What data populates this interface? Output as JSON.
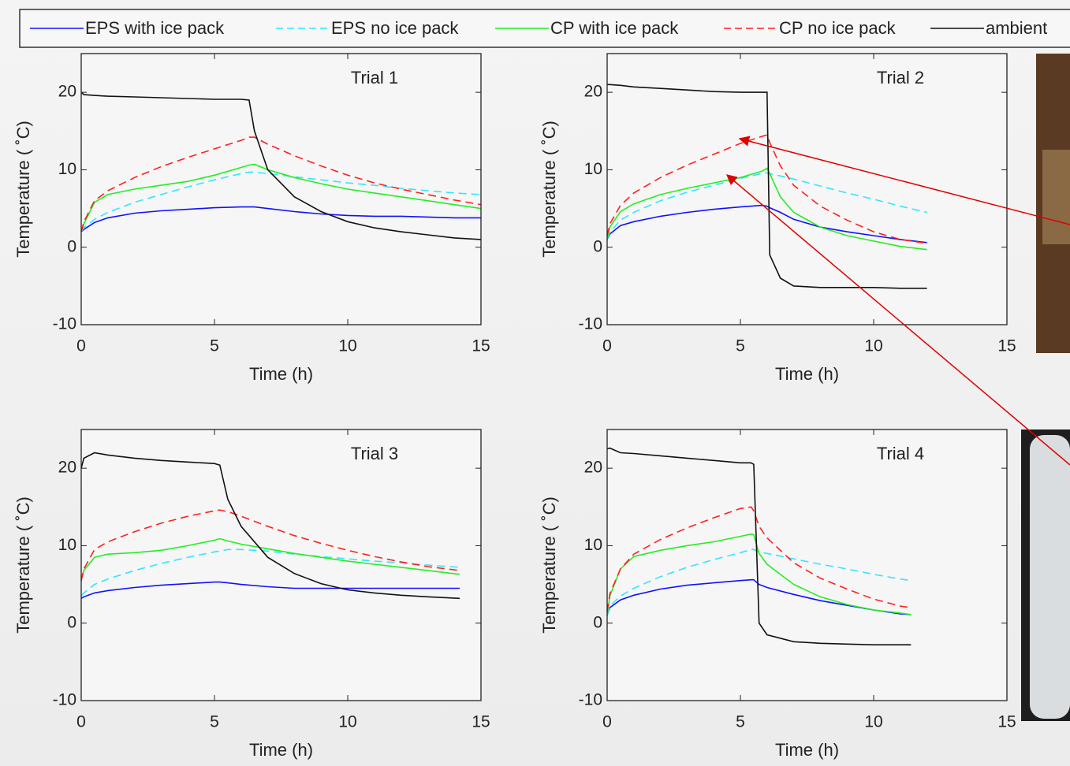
{
  "chart_data": [
    {
      "type": "line",
      "title": "Trial 1",
      "xlabel": "Time (h)",
      "ylabel": "Temperature ( ˚C)",
      "xlim": [
        0,
        15
      ],
      "ylim": [
        -10,
        25
      ],
      "xticks": [
        0,
        5,
        10,
        15
      ],
      "yticks": [
        -10,
        0,
        10,
        20
      ],
      "x": [
        0,
        0.1,
        0.5,
        1,
        2,
        3,
        4,
        5,
        6,
        6.3,
        6.5,
        7,
        8,
        9,
        10,
        11,
        12,
        13,
        14,
        15
      ],
      "series": [
        {
          "name": "EPS with ice pack",
          "color": "#1010ff",
          "dash": false,
          "values": [
            2,
            2.3,
            3.2,
            3.8,
            4.4,
            4.7,
            4.9,
            5.1,
            5.2,
            5.2,
            5.2,
            5,
            4.6,
            4.3,
            4.1,
            4,
            4,
            3.9,
            3.8,
            3.8
          ]
        },
        {
          "name": "EPS no ice pack",
          "color": "#33e6ff",
          "dash": true,
          "values": [
            2,
            2.5,
            3.6,
            4.5,
            5.8,
            6.8,
            7.8,
            8.7,
            9.5,
            9.7,
            9.7,
            9.5,
            9.1,
            8.7,
            8.3,
            8,
            7.6,
            7.3,
            7,
            6.8
          ]
        },
        {
          "name": "CP with ice pack",
          "color": "#22ee22",
          "dash": false,
          "values": [
            2,
            3,
            5.8,
            6.8,
            7.5,
            8,
            8.5,
            9.3,
            10.3,
            10.6,
            10.7,
            10,
            9,
            8.2,
            7.5,
            7,
            6.5,
            6,
            5.5,
            5
          ]
        },
        {
          "name": "CP no ice pack",
          "color": "#ff2020",
          "dash": true,
          "values": [
            2,
            3.3,
            6,
            7.3,
            9,
            10.4,
            11.6,
            12.7,
            13.8,
            14.2,
            14.2,
            13.3,
            11.8,
            10.5,
            9.3,
            8.3,
            7.5,
            6.8,
            6.1,
            5.5
          ]
        },
        {
          "name": "ambient",
          "color": "#111111",
          "dash": false,
          "values": [
            20,
            19.7,
            19.6,
            19.5,
            19.4,
            19.3,
            19.2,
            19.1,
            19.1,
            19,
            15,
            10,
            6.5,
            4.6,
            3.3,
            2.5,
            2,
            1.6,
            1.2,
            1
          ]
        }
      ]
    },
    {
      "type": "line",
      "title": "Trial 2",
      "xlabel": "Time (h)",
      "ylabel": "Temperature ( ˚C)",
      "xlim": [
        0,
        15
      ],
      "ylim": [
        -10,
        25
      ],
      "xticks": [
        0,
        5,
        10,
        15
      ],
      "yticks": [
        -10,
        0,
        10,
        20
      ],
      "x": [
        0,
        0.1,
        0.5,
        1,
        2,
        3,
        4,
        5,
        5.8,
        6,
        6.1,
        6.5,
        7,
        8,
        9,
        10,
        11,
        12
      ],
      "series": [
        {
          "name": "EPS with ice pack",
          "color": "#1010ff",
          "dash": false,
          "values": [
            1,
            1.7,
            2.8,
            3.3,
            4,
            4.5,
            4.9,
            5.2,
            5.4,
            5.3,
            5.1,
            4.5,
            3.6,
            2.6,
            2,
            1.5,
            1,
            0.6
          ]
        },
        {
          "name": "EPS no ice pack",
          "color": "#33e6ff",
          "dash": true,
          "values": [
            1,
            1.9,
            3.5,
            4.5,
            6,
            7.1,
            8,
            8.9,
            9.5,
            9.6,
            9.5,
            9.2,
            8.8,
            7.9,
            7,
            6.2,
            5.3,
            4.5
          ]
        },
        {
          "name": "CP with ice pack",
          "color": "#22ee22",
          "dash": false,
          "values": [
            1,
            2.6,
            4.6,
            5.6,
            6.8,
            7.6,
            8.3,
            9,
            9.8,
            10.2,
            9.5,
            6.5,
            4.5,
            2.6,
            1.5,
            0.8,
            0.1,
            -0.3
          ]
        },
        {
          "name": "CP no ice pack",
          "color": "#ff2020",
          "dash": true,
          "values": [
            1.5,
            3,
            5.4,
            7,
            9,
            10.6,
            12,
            13.4,
            14.3,
            14.5,
            13.5,
            10.5,
            8,
            5.3,
            3.5,
            2,
            1,
            0.5
          ]
        },
        {
          "name": "ambient",
          "color": "#111111",
          "dash": false,
          "values": [
            21,
            21,
            20.9,
            20.7,
            20.5,
            20.3,
            20.1,
            20,
            20,
            20,
            -1,
            -4,
            -5,
            -5.2,
            -5.2,
            -5.2,
            -5.3,
            -5.3
          ]
        }
      ]
    },
    {
      "type": "line",
      "title": "Trial 3",
      "xlabel": "Time (h)",
      "ylabel": "Temperature ( ˚C)",
      "xlim": [
        0,
        15
      ],
      "ylim": [
        -10,
        25
      ],
      "xticks": [
        0,
        5,
        10,
        15
      ],
      "yticks": [
        -10,
        0,
        10,
        20
      ],
      "x": [
        0,
        0.1,
        0.5,
        1,
        2,
        3,
        4,
        5,
        5.2,
        5.5,
        6,
        7,
        8,
        9,
        10,
        11,
        12,
        13,
        14.2
      ],
      "series": [
        {
          "name": "EPS with ice pack",
          "color": "#1010ff",
          "dash": false,
          "values": [
            3.2,
            3.4,
            3.9,
            4.2,
            4.6,
            4.9,
            5.1,
            5.3,
            5.3,
            5.2,
            5,
            4.7,
            4.5,
            4.5,
            4.5,
            4.5,
            4.5,
            4.5,
            4.5
          ]
        },
        {
          "name": "EPS no ice pack",
          "color": "#33e6ff",
          "dash": true,
          "values": [
            3.5,
            3.9,
            5,
            5.7,
            6.8,
            7.7,
            8.5,
            9.2,
            9.3,
            9.5,
            9.5,
            9.3,
            8.9,
            8.6,
            8.3,
            8,
            7.8,
            7.5,
            7.2
          ]
        },
        {
          "name": "CP with ice pack",
          "color": "#22ee22",
          "dash": false,
          "values": [
            5.5,
            6.8,
            8.5,
            8.9,
            9.1,
            9.4,
            10,
            10.7,
            10.9,
            10.6,
            10.2,
            9.6,
            9,
            8.5,
            8,
            7.6,
            7.2,
            6.8,
            6.3
          ]
        },
        {
          "name": "CP no ice pack",
          "color": "#ff2020",
          "dash": true,
          "values": [
            5.5,
            7,
            9.5,
            10.5,
            11.8,
            12.9,
            13.8,
            14.5,
            14.6,
            14.4,
            13.8,
            12.5,
            11.3,
            10.3,
            9.4,
            8.6,
            7.9,
            7.3,
            6.8
          ]
        },
        {
          "name": "ambient",
          "color": "#111111",
          "dash": false,
          "values": [
            20,
            21.3,
            22,
            21.7,
            21.3,
            21,
            20.8,
            20.6,
            20.4,
            16,
            12.5,
            8.5,
            6.4,
            5.1,
            4.3,
            3.9,
            3.6,
            3.4,
            3.2
          ]
        }
      ]
    },
    {
      "type": "line",
      "title": "Trial 4",
      "xlabel": "Time (h)",
      "ylabel": "Temperature ( ˚C)",
      "xlim": [
        0,
        15
      ],
      "ylim": [
        -10,
        25
      ],
      "xticks": [
        0,
        5,
        10,
        15
      ],
      "yticks": [
        -10,
        0,
        10,
        20
      ],
      "x": [
        0,
        0.1,
        0.5,
        1,
        2,
        3,
        4,
        5,
        5.4,
        5.5,
        5.7,
        6,
        7,
        8,
        9,
        10,
        11,
        11.4
      ],
      "series": [
        {
          "name": "EPS with ice pack",
          "color": "#1010ff",
          "dash": false,
          "values": [
            1,
            2,
            3,
            3.6,
            4.4,
            4.9,
            5.2,
            5.5,
            5.6,
            5.6,
            5,
            4.6,
            3.7,
            2.9,
            2.3,
            1.7,
            1.2,
            1.1
          ]
        },
        {
          "name": "EPS no ice pack",
          "color": "#33e6ff",
          "dash": true,
          "values": [
            1,
            2.2,
            3.5,
            4.5,
            6,
            7.2,
            8.2,
            9.1,
            9.5,
            9.5,
            9.2,
            9,
            8.3,
            7.6,
            7,
            6.3,
            5.7,
            5.5
          ]
        },
        {
          "name": "CP with ice pack",
          "color": "#22ee22",
          "dash": false,
          "values": [
            1,
            3.5,
            7,
            8.6,
            9.4,
            10,
            10.5,
            11.2,
            11.5,
            11.4,
            9,
            7.6,
            5,
            3.4,
            2.4,
            1.7,
            1.3,
            1.1
          ]
        },
        {
          "name": "CP no ice pack",
          "color": "#ff2020",
          "dash": true,
          "values": [
            1.5,
            3.8,
            7,
            8.9,
            10.8,
            12.3,
            13.6,
            14.8,
            15,
            14.5,
            12.5,
            11,
            7.8,
            5.8,
            4.4,
            3.1,
            2.2,
            2
          ]
        },
        {
          "name": "ambient",
          "color": "#111111",
          "dash": false,
          "values": [
            22.5,
            22.6,
            22,
            21.9,
            21.6,
            21.3,
            21,
            20.7,
            20.7,
            20.5,
            0,
            -1.5,
            -2.4,
            -2.6,
            -2.7,
            -2.8,
            -2.8,
            -2.8
          ]
        }
      ]
    }
  ]
}
